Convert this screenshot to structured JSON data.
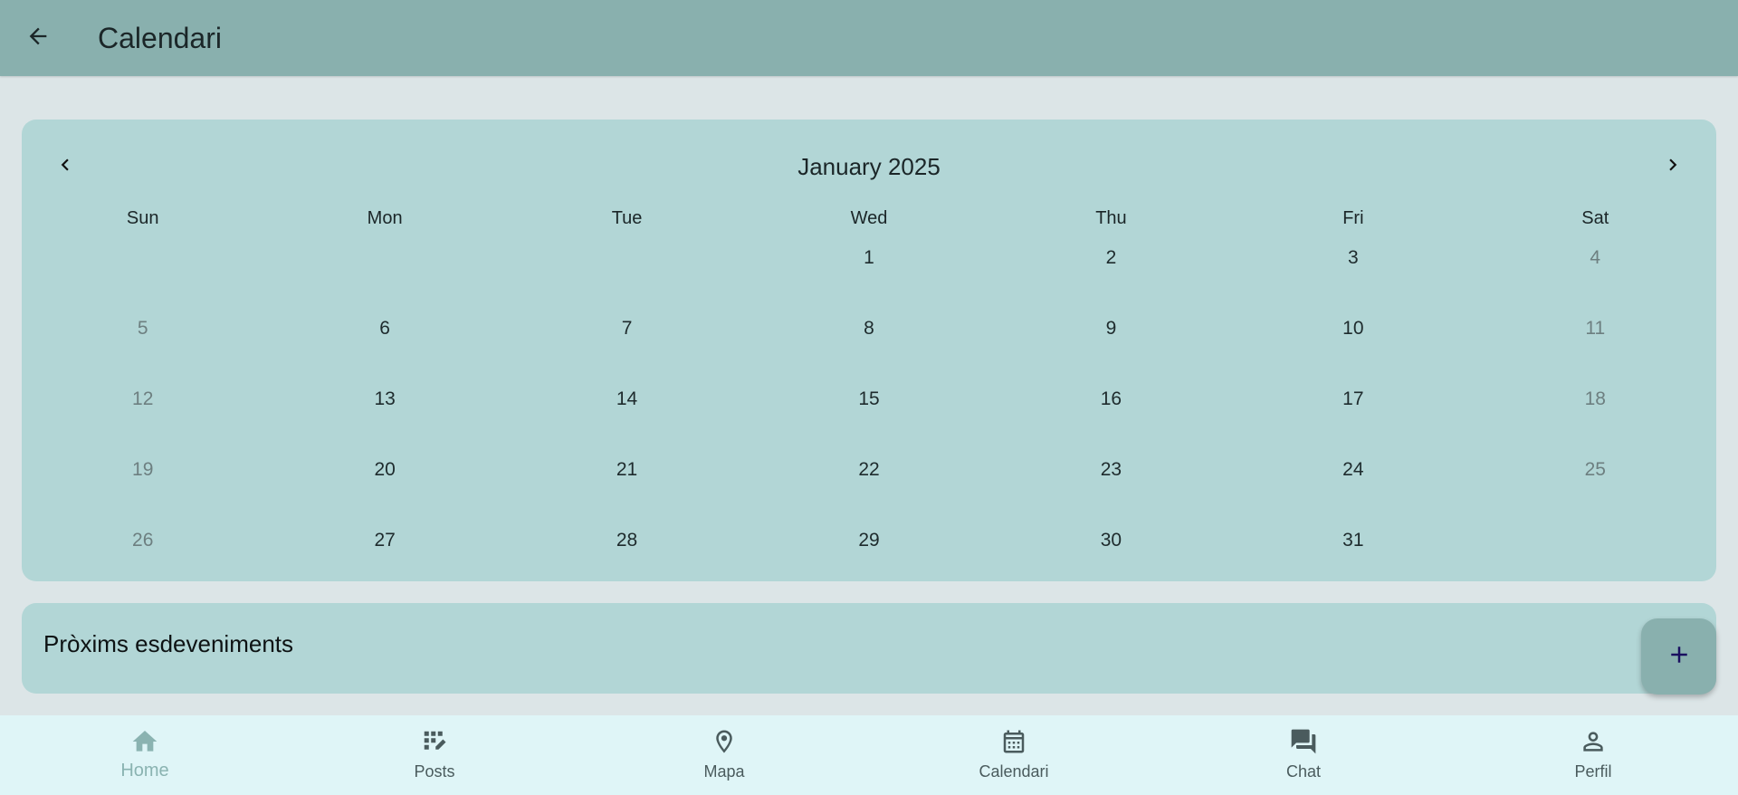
{
  "appbar": {
    "title": "Calendari",
    "back_icon": "arrow-back-icon"
  },
  "calendar": {
    "month_label": "January 2025",
    "prev_icon": "chevron-left-icon",
    "next_icon": "chevron-right-icon",
    "weekdays": [
      "Sun",
      "Mon",
      "Tue",
      "Wed",
      "Thu",
      "Fri",
      "Sat"
    ],
    "days": [
      "",
      "",
      "",
      "1",
      "2",
      "3",
      "4",
      "5",
      "6",
      "7",
      "8",
      "9",
      "10",
      "11",
      "12",
      "13",
      "14",
      "15",
      "16",
      "17",
      "18",
      "19",
      "20",
      "21",
      "22",
      "23",
      "24",
      "25",
      "26",
      "27",
      "28",
      "29",
      "30",
      "31",
      ""
    ]
  },
  "events": {
    "title": "Pròxims esdeveniments"
  },
  "fab": {
    "icon": "plus-icon"
  },
  "bottom_nav": {
    "items": [
      {
        "label": "Home",
        "icon": "home-icon",
        "active": true
      },
      {
        "label": "Posts",
        "icon": "posts-icon",
        "active": false
      },
      {
        "label": "Mapa",
        "icon": "location-pin-icon",
        "active": false
      },
      {
        "label": "Calendari",
        "icon": "calendar-icon",
        "active": false
      },
      {
        "label": "Chat",
        "icon": "chat-icon",
        "active": false
      },
      {
        "label": "Perfil",
        "icon": "person-icon",
        "active": false
      }
    ]
  },
  "colors": {
    "appbar": "#89b0ae",
    "background": "#dce5e7",
    "card": "#b2d6d6",
    "bottom_nav": "#dff5f7",
    "active_nav": "#8ab3b1",
    "fab_plus": "#1a1060"
  }
}
